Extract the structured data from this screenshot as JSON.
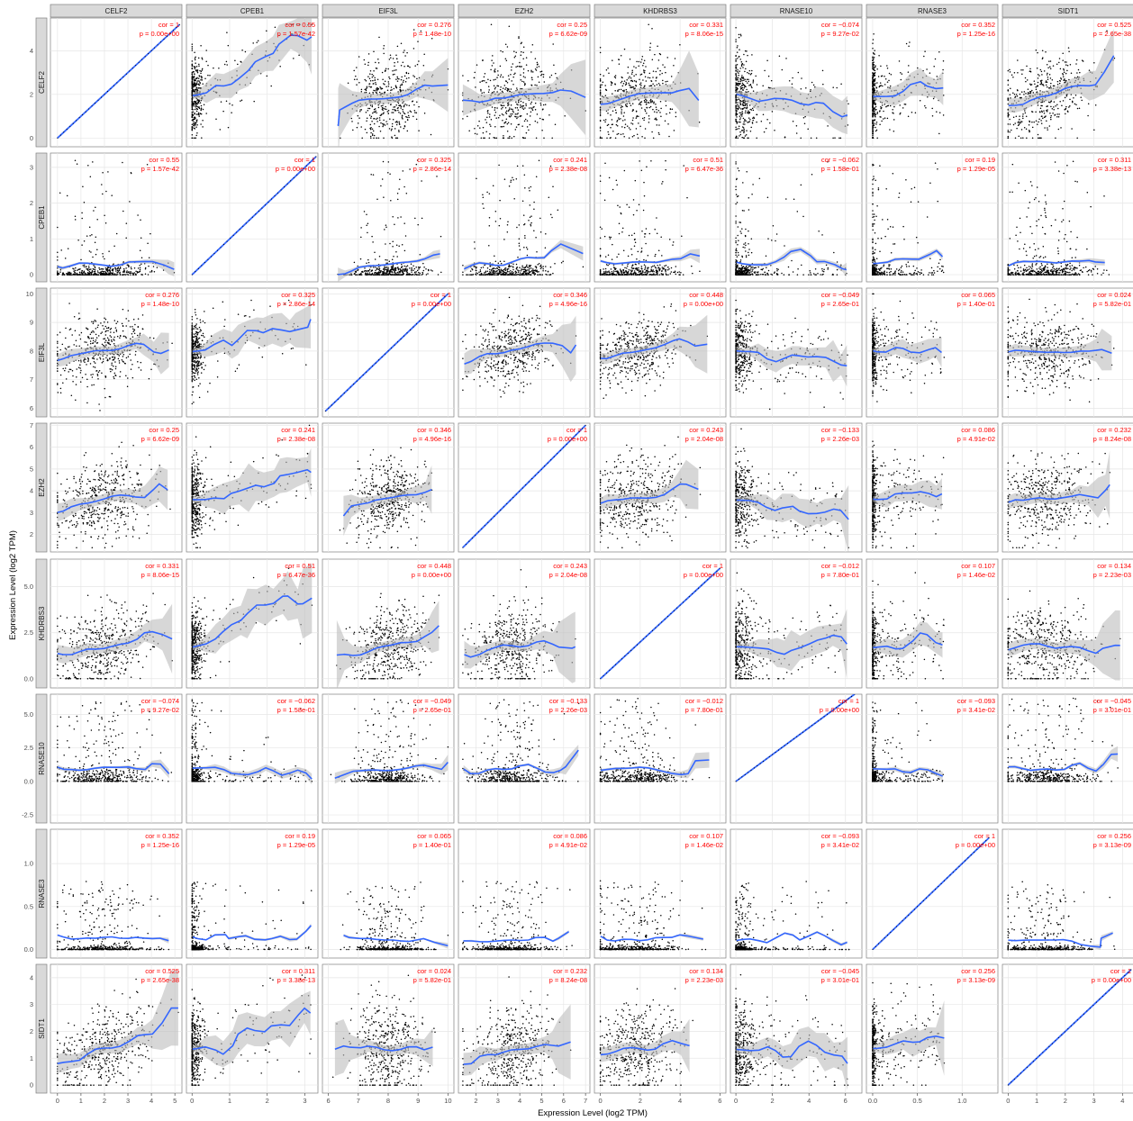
{
  "chart_data": {
    "type": "scatter",
    "layout": "8x8 pairwise correlation matrix with loess smooth lines and confidence bands",
    "genes": [
      "CELF2",
      "CPEB1",
      "EIF3L",
      "EZH2",
      "KHDRBS3",
      "RNASE10",
      "RNASE3",
      "SIDT1"
    ],
    "xlabel": "Expression Level (log2 TPM)",
    "ylabel": "Expression Level (log2 TPM)",
    "series_color": "#3366ff",
    "point_color": "#000000",
    "band_color": "#bdbdbd",
    "stat_color": "#ff0000",
    "x_axis": {
      "CELF2": {
        "range": [
          -0.3,
          5.3
        ],
        "ticks": [
          "0",
          "1",
          "2",
          "3",
          "4",
          "5"
        ]
      },
      "CPEB1": {
        "range": [
          -0.15,
          3.35
        ],
        "ticks": [
          "0",
          "1",
          "2",
          "3"
        ]
      },
      "EIF3L": {
        "range": [
          5.8,
          10.2
        ],
        "ticks": [
          "6",
          "7",
          "8",
          "9",
          "10"
        ]
      },
      "EZH2": {
        "range": [
          1.2,
          7.2
        ],
        "ticks": [
          "2",
          "3",
          "4",
          "5",
          "6",
          "7"
        ]
      },
      "KHDRBS3": {
        "range": [
          -0.3,
          6.3
        ],
        "ticks": [
          "0",
          "2",
          "4",
          "6"
        ]
      },
      "RNASE10": {
        "range": [
          -0.3,
          6.9
        ],
        "ticks": [
          "0",
          "2",
          "4",
          "6"
        ]
      },
      "RNASE3": {
        "range": [
          -0.07,
          1.4
        ],
        "ticks": [
          "0.0",
          "0.5",
          "1.0"
        ]
      },
      "SIDT1": {
        "range": [
          -0.2,
          4.4
        ],
        "ticks": [
          "0",
          "1",
          "2",
          "3",
          "4"
        ]
      }
    },
    "y_axis": {
      "CELF2": {
        "range": [
          -0.4,
          5.5
        ],
        "ticks": [
          "0",
          "2",
          "4"
        ]
      },
      "CPEB1": {
        "range": [
          -0.2,
          3.4
        ],
        "ticks": [
          "0",
          "1",
          "2",
          "3"
        ]
      },
      "EIF3L": {
        "range": [
          5.7,
          10.2
        ],
        "ticks": [
          "6",
          "7",
          "8",
          "9",
          "10"
        ]
      },
      "EZH2": {
        "range": [
          1.2,
          7.1
        ],
        "ticks": [
          "2",
          "3",
          "4",
          "5",
          "6",
          "7"
        ]
      },
      "KHDRBS3": {
        "range": [
          -0.5,
          6.5
        ],
        "ticks": [
          "0.0",
          "2.5",
          "5.0"
        ]
      },
      "RNASE10": {
        "range": [
          -3.1,
          6.5
        ],
        "ticks": [
          "-2.5",
          "0.0",
          "2.5",
          "5.0"
        ]
      },
      "RNASE3": {
        "range": [
          -0.1,
          1.4
        ],
        "ticks": [
          "0.0",
          "0.5",
          "1.0"
        ]
      },
      "SIDT1": {
        "range": [
          -0.3,
          4.5
        ],
        "ticks": [
          "0",
          "1",
          "2",
          "3",
          "4"
        ]
      }
    },
    "correlations": [
      {
        "row": "CELF2",
        "cells": [
          {
            "cor": "cor = 1",
            "p": "p = 0.00e+00"
          },
          {
            "cor": "cor = 0.55",
            "p": "p = 1.57e-42"
          },
          {
            "cor": "cor = 0.276",
            "p": "p = 1.48e-10"
          },
          {
            "cor": "cor = 0.25",
            "p": "p = 6.62e-09"
          },
          {
            "cor": "cor = 0.331",
            "p": "p = 8.06e-15"
          },
          {
            "cor": "cor = −0.074",
            "p": "p = 9.27e-02"
          },
          {
            "cor": "cor = 0.352",
            "p": "p = 1.25e-16"
          },
          {
            "cor": "cor = 0.525",
            "p": "p = 2.65e-38"
          }
        ]
      },
      {
        "row": "CPEB1",
        "cells": [
          {
            "cor": "cor = 0.55",
            "p": "p = 1.57e-42"
          },
          {
            "cor": "cor = 1",
            "p": "p = 0.00e+00"
          },
          {
            "cor": "cor = 0.325",
            "p": "p = 2.86e-14"
          },
          {
            "cor": "cor = 0.241",
            "p": "p = 2.38e-08"
          },
          {
            "cor": "cor = 0.51",
            "p": "p = 6.47e-36"
          },
          {
            "cor": "cor = −0.062",
            "p": "p = 1.58e-01"
          },
          {
            "cor": "cor = 0.19",
            "p": "p = 1.29e-05"
          },
          {
            "cor": "cor = 0.311",
            "p": "p = 3.38e-13"
          }
        ]
      },
      {
        "row": "EIF3L",
        "cells": [
          {
            "cor": "cor = 0.276",
            "p": "p = 1.48e-10"
          },
          {
            "cor": "cor = 0.325",
            "p": "p = 2.86e-14"
          },
          {
            "cor": "cor = 1",
            "p": "p = 0.00e+00"
          },
          {
            "cor": "cor = 0.346",
            "p": "p = 4.96e-16"
          },
          {
            "cor": "cor = 0.448",
            "p": "p = 0.00e+00"
          },
          {
            "cor": "cor = −0.049",
            "p": "p = 2.65e-01"
          },
          {
            "cor": "cor = 0.065",
            "p": "p = 1.40e-01"
          },
          {
            "cor": "cor = 0.024",
            "p": "p = 5.82e-01"
          }
        ]
      },
      {
        "row": "EZH2",
        "cells": [
          {
            "cor": "cor = 0.25",
            "p": "p = 6.62e-09"
          },
          {
            "cor": "cor = 0.241",
            "p": "p = 2.38e-08"
          },
          {
            "cor": "cor = 0.346",
            "p": "p = 4.96e-16"
          },
          {
            "cor": "cor = 1",
            "p": "p = 0.00e+00"
          },
          {
            "cor": "cor = 0.243",
            "p": "p = 2.04e-08"
          },
          {
            "cor": "cor = −0.133",
            "p": "p = 2.26e-03"
          },
          {
            "cor": "cor = 0.086",
            "p": "p = 4.91e-02"
          },
          {
            "cor": "cor = 0.232",
            "p": "p = 8.24e-08"
          }
        ]
      },
      {
        "row": "KHDRBS3",
        "cells": [
          {
            "cor": "cor = 0.331",
            "p": "p = 8.06e-15"
          },
          {
            "cor": "cor = 0.51",
            "p": "p = 6.47e-36"
          },
          {
            "cor": "cor = 0.448",
            "p": "p = 0.00e+00"
          },
          {
            "cor": "cor = 0.243",
            "p": "p = 2.04e-08"
          },
          {
            "cor": "cor = 1",
            "p": "p = 0.00e+00"
          },
          {
            "cor": "cor = −0.012",
            "p": "p = 7.80e-01"
          },
          {
            "cor": "cor = 0.107",
            "p": "p = 1.46e-02"
          },
          {
            "cor": "cor = 0.134",
            "p": "p = 2.23e-03"
          }
        ]
      },
      {
        "row": "RNASE10",
        "cells": [
          {
            "cor": "cor = −0.074",
            "p": "p = 9.27e-02"
          },
          {
            "cor": "cor = −0.062",
            "p": "p = 1.58e-01"
          },
          {
            "cor": "cor = −0.049",
            "p": "p = 2.65e-01"
          },
          {
            "cor": "cor = −0.133",
            "p": "p = 2.26e-03"
          },
          {
            "cor": "cor = −0.012",
            "p": "p = 7.80e-01"
          },
          {
            "cor": "cor = 1",
            "p": "p = 0.00e+00"
          },
          {
            "cor": "cor = −0.093",
            "p": "p = 3.41e-02"
          },
          {
            "cor": "cor = −0.045",
            "p": "p = 3.01e-01"
          }
        ]
      },
      {
        "row": "RNASE3",
        "cells": [
          {
            "cor": "cor = 0.352",
            "p": "p = 1.25e-16"
          },
          {
            "cor": "cor = 0.19",
            "p": "p = 1.29e-05"
          },
          {
            "cor": "cor = 0.065",
            "p": "p = 1.40e-01"
          },
          {
            "cor": "cor = 0.086",
            "p": "p = 4.91e-02"
          },
          {
            "cor": "cor = 0.107",
            "p": "p = 1.46e-02"
          },
          {
            "cor": "cor = −0.093",
            "p": "p = 3.41e-02"
          },
          {
            "cor": "cor = 1",
            "p": "p = 0.00e+00"
          },
          {
            "cor": "cor = 0.256",
            "p": "p = 3.13e-09"
          }
        ]
      },
      {
        "row": "SIDT1",
        "cells": [
          {
            "cor": "cor = 0.525",
            "p": "p = 2.65e-38"
          },
          {
            "cor": "cor = 0.311",
            "p": "p = 3.38e-13"
          },
          {
            "cor": "cor = 0.024",
            "p": "p = 5.82e-01"
          },
          {
            "cor": "cor = 0.232",
            "p": "p = 8.24e-08"
          },
          {
            "cor": "cor = 0.134",
            "p": "p = 2.23e-03"
          },
          {
            "cor": "cor = −0.045",
            "p": "p = 3.01e-01"
          },
          {
            "cor": "cor = 0.256",
            "p": "p = 3.13e-09"
          },
          {
            "cor": "cor = 1",
            "p": "p = 0.00e+00"
          }
        ]
      }
    ],
    "grid": true,
    "legend": "none"
  }
}
